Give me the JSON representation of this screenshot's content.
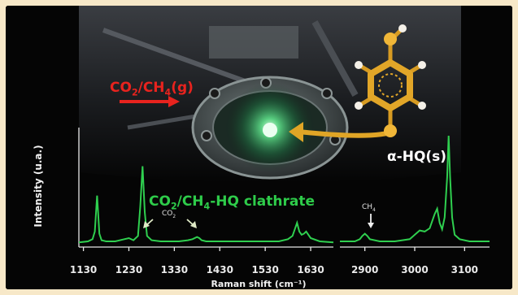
{
  "texts": {
    "gas_label": "CO2/CH4(g)",
    "hq_label": "α-HQ(s)",
    "clathrate_label": "CO2/CH4-HQ clathrate",
    "co2_annotation": "CO2",
    "ch4_annotation": "CH4",
    "y_axis_label": "Intensity (u.a.)",
    "x_axis_label": "Raman shift (cm⁻¹)"
  },
  "chart_data": {
    "type": "line",
    "xlabel": "Raman shift (cm⁻¹)",
    "ylabel": "Intensity (u.a.)",
    "panels": [
      {
        "xlim": [
          1120,
          1680
        ],
        "ticks": [
          "1130",
          "1230",
          "1330",
          "1430",
          "1530",
          "1630"
        ],
        "x": [
          1120,
          1140,
          1150,
          1155,
          1160,
          1165,
          1170,
          1180,
          1200,
          1220,
          1230,
          1240,
          1250,
          1255,
          1260,
          1265,
          1270,
          1280,
          1300,
          1320,
          1340,
          1360,
          1370,
          1380,
          1385,
          1390,
          1400,
          1440,
          1480,
          1520,
          1560,
          1580,
          1590,
          1600,
          1605,
          1610,
          1615,
          1620,
          1630,
          1650,
          1680
        ],
        "y": [
          0.02,
          0.03,
          0.05,
          0.12,
          0.45,
          0.1,
          0.04,
          0.03,
          0.03,
          0.05,
          0.06,
          0.04,
          0.08,
          0.35,
          0.72,
          0.3,
          0.08,
          0.04,
          0.03,
          0.03,
          0.03,
          0.04,
          0.05,
          0.07,
          0.06,
          0.04,
          0.03,
          0.03,
          0.03,
          0.03,
          0.03,
          0.05,
          0.08,
          0.2,
          0.12,
          0.09,
          0.1,
          0.12,
          0.06,
          0.03,
          0.02
        ]
      },
      {
        "xlim": [
          2850,
          3150
        ],
        "ticks": [
          "2900",
          "3000",
          "3100"
        ],
        "x": [
          2850,
          2880,
          2890,
          2895,
          2900,
          2905,
          2910,
          2930,
          2960,
          2990,
          3000,
          3010,
          3020,
          3030,
          3040,
          3045,
          3050,
          3055,
          3060,
          3065,
          3068,
          3071,
          3075,
          3080,
          3090,
          3110,
          3130,
          3150
        ],
        "y": [
          0.03,
          0.03,
          0.05,
          0.08,
          0.1,
          0.08,
          0.05,
          0.03,
          0.03,
          0.05,
          0.09,
          0.13,
          0.12,
          0.15,
          0.28,
          0.33,
          0.2,
          0.14,
          0.25,
          0.62,
          1.0,
          0.62,
          0.25,
          0.09,
          0.05,
          0.03,
          0.03,
          0.03
        ]
      }
    ]
  }
}
